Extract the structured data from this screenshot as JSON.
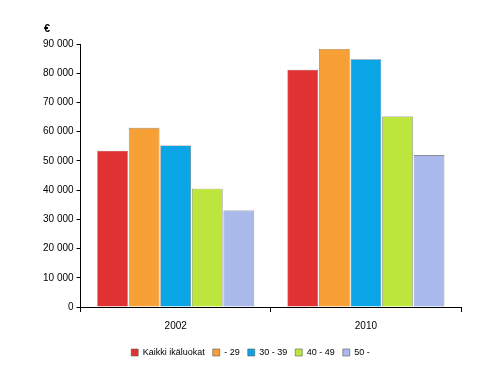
{
  "chart_data": {
    "type": "bar",
    "ylabel": "€",
    "categories": [
      "2002",
      "2010"
    ],
    "series": [
      {
        "name": "Kaikki ikäluokat",
        "color": "#e03232",
        "values": [
          53500,
          81200
        ]
      },
      {
        "name": "- 29",
        "color": "#f7a035",
        "values": [
          61300,
          88300
        ]
      },
      {
        "name": "30 - 39",
        "color": "#0aa5e6",
        "values": [
          55300,
          84800
        ]
      },
      {
        "name": "40 - 49",
        "color": "#bde63c",
        "values": [
          40500,
          65200
        ]
      },
      {
        "name": "50 -",
        "color": "#a9b9ec",
        "values": [
          33000,
          52000
        ]
      }
    ],
    "ylim": [
      0,
      90000
    ],
    "yticks": [
      0,
      {
        "value": 10000,
        "label": "10 000"
      },
      {
        "value": 20000,
        "label": "20 000"
      },
      {
        "value": 30000,
        "label": "30 000"
      },
      {
        "value": 40000,
        "label": "40 000"
      },
      {
        "value": 50000,
        "label": "50 000"
      },
      {
        "value": 60000,
        "label": "60 000"
      },
      {
        "value": 70000,
        "label": "70 000"
      },
      {
        "value": 80000,
        "label": "80 000"
      },
      {
        "value": 90000,
        "label": "90 000"
      }
    ],
    "grid": false,
    "legend": "bottom"
  }
}
